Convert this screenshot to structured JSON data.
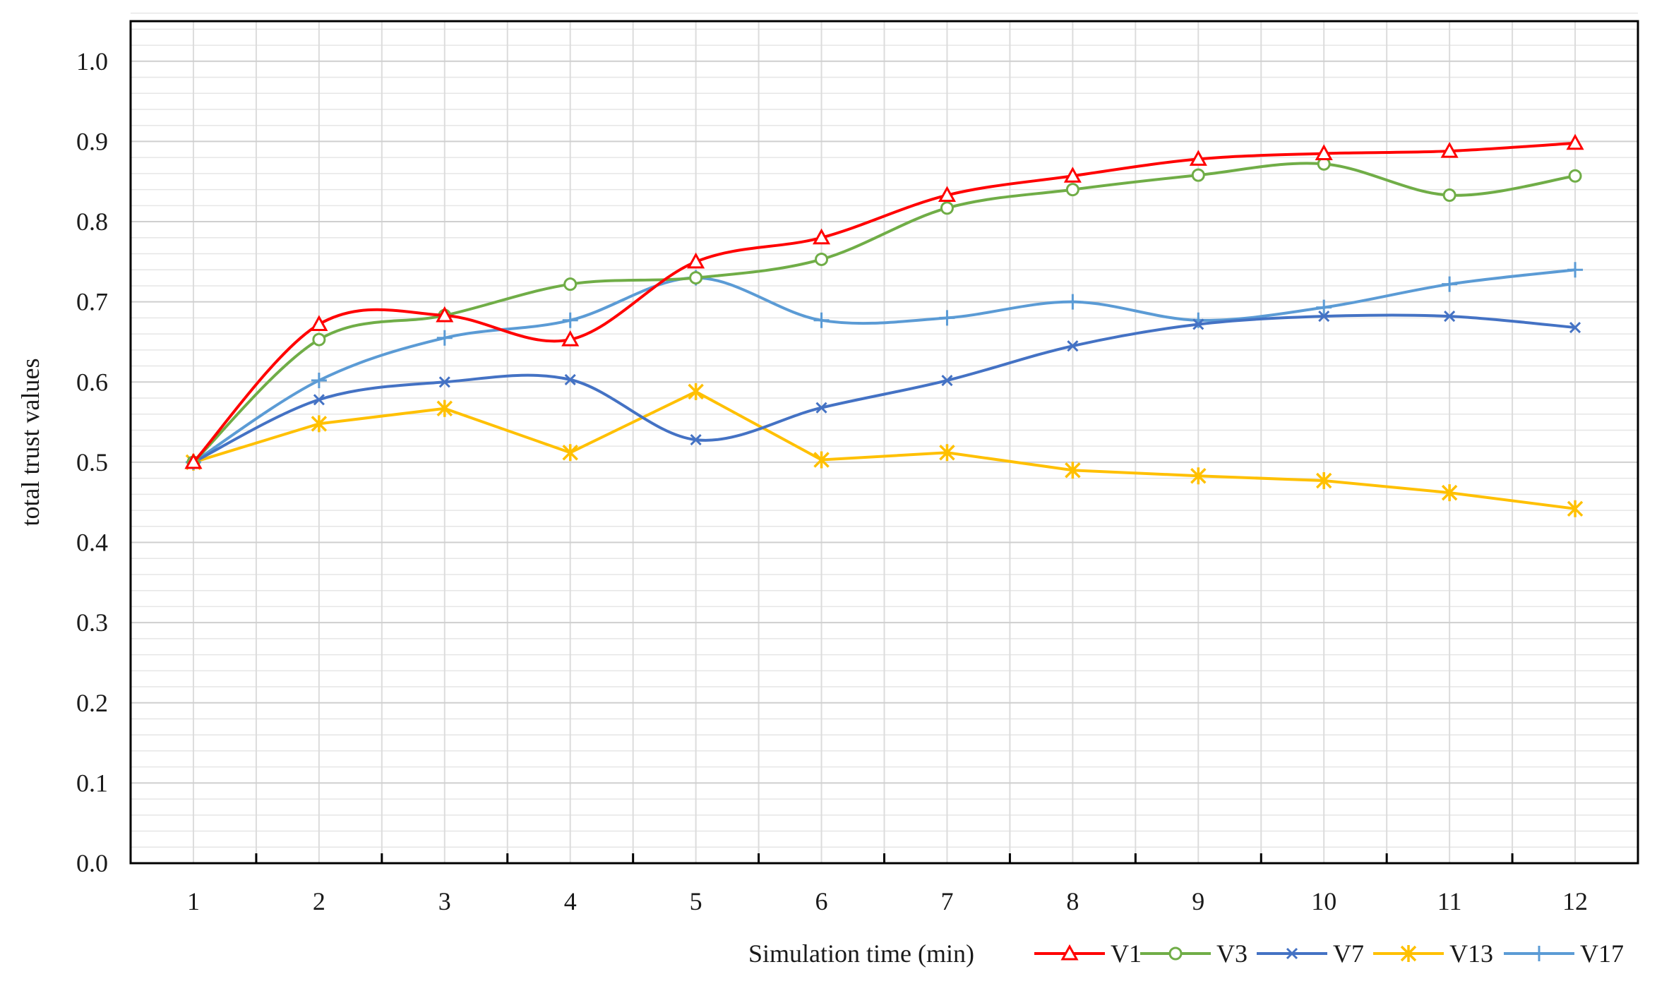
{
  "chart_data": {
    "type": "line",
    "title": "",
    "xlabel": "Simulation time (min)",
    "ylabel": "total trust values",
    "x": [
      1,
      2,
      3,
      4,
      5,
      6,
      7,
      8,
      9,
      10,
      11,
      12
    ],
    "xlim": [
      0.5,
      12.5
    ],
    "ylim": [
      0.0,
      1.05
    ],
    "y_ticks": [
      0.0,
      0.1,
      0.2,
      0.3,
      0.4,
      0.5,
      0.6,
      0.7,
      0.8,
      0.9,
      1.0
    ],
    "y_tick_labels": [
      "0.0",
      "0.1",
      "0.2",
      "0.3",
      "0.4",
      "0.5",
      "0.6",
      "0.7",
      "0.8",
      "0.9",
      "1.0"
    ],
    "x_tick_labels": [
      "1",
      "2",
      "3",
      "4",
      "5",
      "6",
      "7",
      "8",
      "9",
      "10",
      "11",
      "12"
    ],
    "grid": true,
    "smooth": true,
    "legend_position": "bottom-right",
    "series": [
      {
        "name": "V1",
        "color": "#ff0000",
        "marker": "triangle",
        "values": [
          0.5,
          0.672,
          0.683,
          0.653,
          0.75,
          0.78,
          0.833,
          0.857,
          0.878,
          0.885,
          0.888,
          0.898
        ]
      },
      {
        "name": "V3",
        "color": "#70ad47",
        "marker": "circle",
        "values": [
          0.5,
          0.653,
          0.683,
          0.722,
          0.73,
          0.753,
          0.817,
          0.84,
          0.858,
          0.872,
          0.833,
          0.857
        ]
      },
      {
        "name": "V7",
        "color": "#4472c4",
        "marker": "x",
        "values": [
          0.5,
          0.578,
          0.6,
          0.603,
          0.528,
          0.568,
          0.602,
          0.645,
          0.672,
          0.682,
          0.682,
          0.668
        ]
      },
      {
        "name": "V13",
        "color": "#ffc000",
        "marker": "star",
        "values": [
          0.5,
          0.548,
          0.567,
          0.512,
          0.588,
          0.503,
          0.512,
          0.49,
          0.483,
          0.477,
          0.462,
          0.442
        ]
      },
      {
        "name": "V17",
        "color": "#5b9bd5",
        "marker": "plus",
        "values": [
          0.5,
          0.602,
          0.655,
          0.677,
          0.73,
          0.677,
          0.68,
          0.7,
          0.677,
          0.693,
          0.722,
          0.74
        ]
      }
    ]
  }
}
